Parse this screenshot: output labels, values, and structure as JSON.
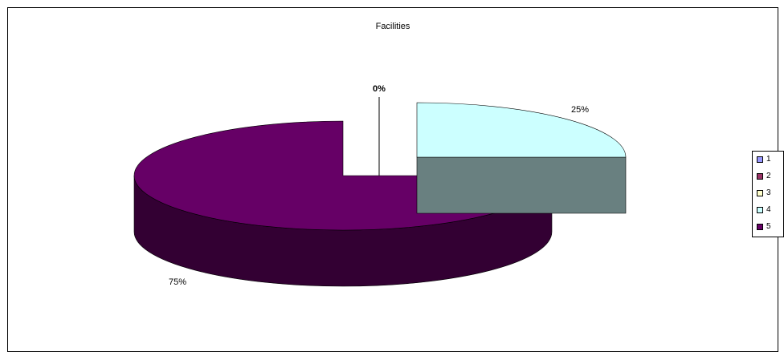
{
  "chart_data": {
    "type": "pie",
    "title": "Facilities",
    "three_d": true,
    "categories": [
      "1",
      "2",
      "3",
      "4",
      "5"
    ],
    "values": [
      0,
      0,
      0,
      25,
      75
    ],
    "data_labels": [
      "",
      "",
      "0%",
      "25%",
      "75%"
    ],
    "colors": {
      "1": "#9999FF",
      "2": "#993366",
      "3": "#FFFFCC",
      "4": "#CCFFFF",
      "5": "#660066",
      "5_side": "#330033",
      "4_side": "#698080"
    },
    "legend": {
      "position": "right",
      "entries": [
        "1",
        "2",
        "3",
        "4",
        "5"
      ]
    }
  }
}
